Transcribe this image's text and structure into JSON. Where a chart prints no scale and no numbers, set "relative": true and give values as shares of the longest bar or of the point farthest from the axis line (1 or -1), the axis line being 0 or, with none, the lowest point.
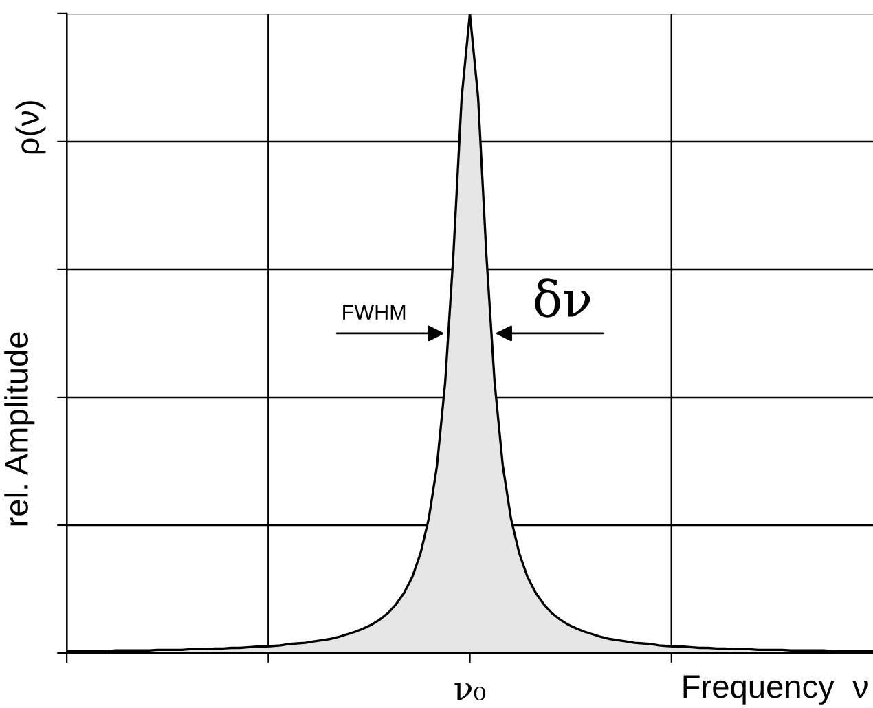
{
  "chart_data": {
    "type": "area",
    "relative": true,
    "xlabel": "Frequency  ν",
    "ylabel": "rel. Amplitude",
    "color": "#e6e6e6",
    "grid": true,
    "categories": [
      null,
      null,
      null,
      null,
      null,
      null,
      null,
      null,
      null,
      null,
      null,
      null,
      null,
      null,
      null,
      null,
      null,
      null,
      null,
      null,
      null,
      null,
      null,
      null,
      null,
      null,
      null,
      null,
      null,
      null,
      null,
      null,
      null,
      null,
      null,
      null,
      null,
      null,
      null,
      null,
      null,
      null,
      null,
      null,
      null,
      null,
      null,
      null,
      null,
      null,
      null,
      null,
      null,
      null,
      null,
      null,
      null,
      null,
      null,
      null,
      null,
      null,
      null,
      null,
      null,
      null,
      null,
      null,
      null,
      null,
      null,
      null,
      null,
      null,
      null,
      null,
      null,
      null,
      null,
      null,
      null,
      null,
      null,
      null,
      null,
      null,
      null,
      null,
      null,
      null,
      null,
      null,
      null,
      null,
      null,
      null,
      null,
      null,
      null
    ],
    "values": [
      0.003,
      0.003,
      0.003,
      0.003,
      0.003,
      0.003,
      0.004,
      0.004,
      0.004,
      0.004,
      0.004,
      0.005,
      0.005,
      0.005,
      0.005,
      0.006,
      0.006,
      0.006,
      0.007,
      0.007,
      0.008,
      0.008,
      0.009,
      0.01,
      0.01,
      0.011,
      0.012,
      0.014,
      0.015,
      0.016,
      0.018,
      0.02,
      0.022,
      0.025,
      0.029,
      0.033,
      0.038,
      0.044,
      0.052,
      0.062,
      0.076,
      0.094,
      0.119,
      0.156,
      0.21,
      0.293,
      0.424,
      0.624,
      0.869,
      1,
      0.869,
      0.624,
      0.424,
      0.293,
      0.21,
      0.156,
      0.119,
      0.094,
      0.076,
      0.062,
      0.052,
      0.044,
      0.038,
      0.033,
      0.029,
      0.025,
      0.022,
      0.02,
      0.018,
      0.016,
      0.015,
      0.014,
      0.012,
      0.011,
      0.01,
      0.01,
      0.009,
      0.008,
      0.008,
      0.007,
      0.007,
      0.006,
      0.006,
      0.006,
      0.005,
      0.005,
      0.005,
      0.005,
      0.004,
      0.004,
      0.004,
      0.004,
      0.004,
      0.003,
      0.003,
      0.003,
      0.003,
      0.003,
      0.003
    ],
    "annotations": [
      "ρ(ν)",
      "ν₀",
      "FWHM",
      "δν"
    ]
  }
}
